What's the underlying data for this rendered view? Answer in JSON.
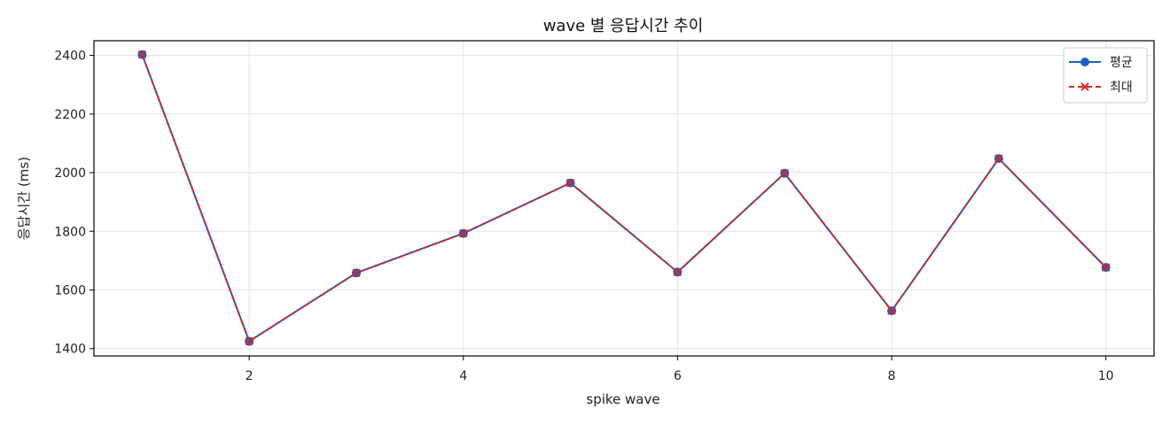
{
  "chart_data": {
    "type": "line",
    "title": "wave 별 응답시간 추이",
    "xlabel": "spike wave",
    "ylabel": "응답시간 (ms)",
    "x": [
      1,
      2,
      3,
      4,
      5,
      6,
      7,
      8,
      9,
      10
    ],
    "xlim": [
      0.55,
      10.45
    ],
    "ylim": [
      1375,
      2450
    ],
    "x_ticks": [
      2,
      4,
      6,
      8,
      10
    ],
    "y_ticks": [
      1400,
      1600,
      1800,
      2000,
      2200,
      2400
    ],
    "grid": true,
    "legend_position": "top-right",
    "series": [
      {
        "name": "평균",
        "values": [
          2403,
          1425,
          1658,
          1793,
          1965,
          1661,
          1998,
          1529,
          2048,
          1677
        ],
        "color": "#1f5fbf",
        "line_style": "solid",
        "marker": "circle"
      },
      {
        "name": "최대",
        "values": [
          2403,
          1425,
          1658,
          1793,
          1965,
          1661,
          1998,
          1529,
          2048,
          1677
        ],
        "color": "#d62728",
        "line_style": "dashed",
        "marker": "x"
      }
    ]
  }
}
